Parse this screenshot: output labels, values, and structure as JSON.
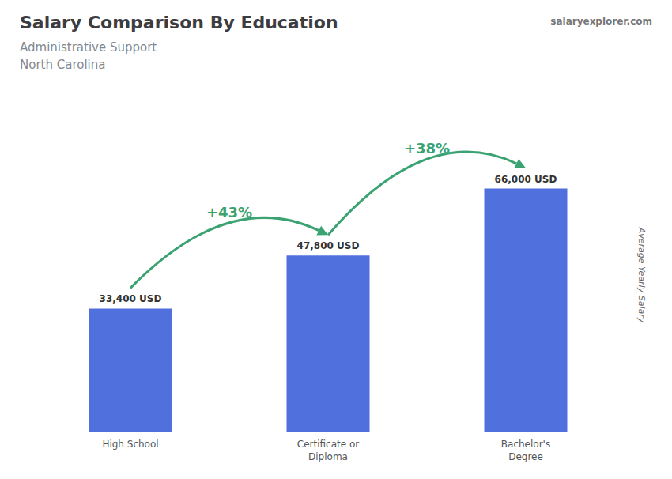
{
  "chart_data": {
    "type": "bar",
    "title": "Salary Comparison By Education",
    "subtitle": [
      "Administrative Support",
      "North Carolina"
    ],
    "ylabel": "Average Yearly Salary",
    "categories": [
      "High School",
      "Certificate or\nDiploma",
      "Bachelor's\nDegree"
    ],
    "values": [
      33400,
      47800,
      66000
    ],
    "value_labels": [
      "33,400 USD",
      "47,800 USD",
      "66,000 USD"
    ],
    "data_labels": true,
    "annotations": [
      "+43%",
      "+38%"
    ],
    "source": "salaryexplorer.com",
    "ylim": [
      0,
      85000
    ],
    "grid": false,
    "tick_labels": "x"
  }
}
